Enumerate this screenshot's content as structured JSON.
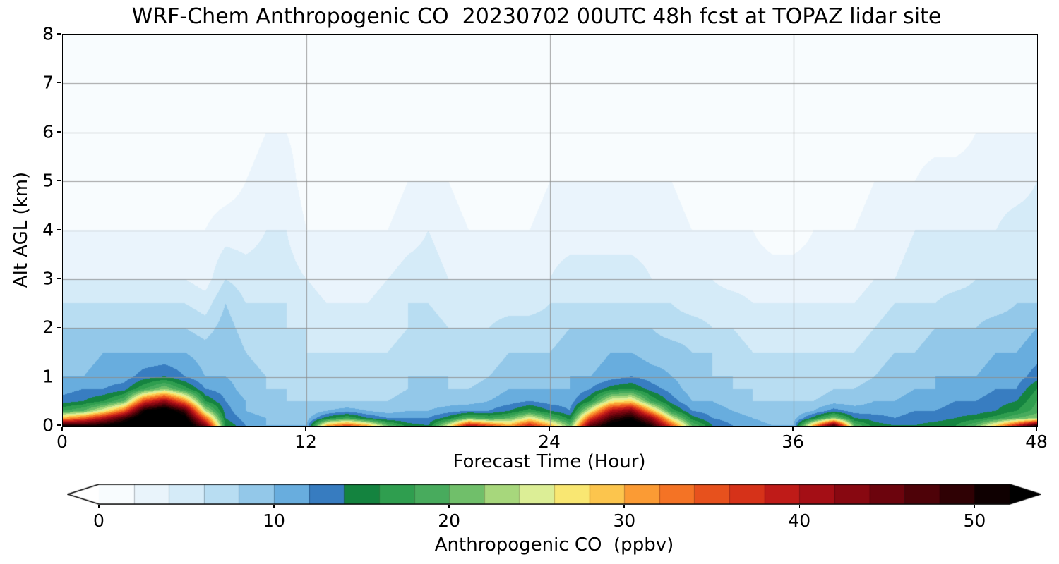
{
  "chart_data": {
    "type": "heatmap",
    "title": "WRF-Chem Anthropogenic CO  20230702 00UTC 48h fcst at TOPAZ lidar site",
    "xlabel": "Forecast Time (Hour)",
    "ylabel": "Alt AGL (km)",
    "xlim": [
      0,
      48
    ],
    "ylim": [
      0,
      8
    ],
    "xticks": [
      0,
      12,
      24,
      36,
      48
    ],
    "yticks": [
      0,
      1,
      2,
      3,
      4,
      5,
      6,
      7,
      8
    ],
    "grid": true,
    "x": [
      0,
      1,
      2,
      3,
      4,
      5,
      6,
      7,
      8,
      9,
      10,
      11,
      12,
      13,
      14,
      15,
      16,
      17,
      18,
      19,
      20,
      21,
      22,
      23,
      24,
      25,
      26,
      27,
      28,
      29,
      30,
      31,
      32,
      33,
      34,
      35,
      36,
      37,
      38,
      39,
      40,
      41,
      42,
      43,
      44,
      45,
      46,
      47,
      48
    ],
    "y_levels": [
      0,
      0.15,
      0.3,
      0.5,
      0.75,
      1.0,
      1.5,
      2.0,
      2.5,
      3.0,
      4.0,
      5.0,
      6.0,
      8.0
    ],
    "values": [
      [
        50,
        30,
        18,
        13,
        11,
        10,
        9,
        8,
        6,
        4,
        2,
        1,
        1,
        0
      ],
      [
        50,
        34,
        20,
        14,
        12,
        10,
        9,
        8,
        6,
        4,
        2,
        1,
        1,
        0
      ],
      [
        52,
        40,
        26,
        16,
        12,
        11,
        10,
        8,
        6,
        4,
        2,
        1,
        1,
        0
      ],
      [
        55,
        48,
        34,
        20,
        13,
        11,
        10,
        8,
        6,
        4,
        2,
        1,
        1,
        0
      ],
      [
        60,
        57,
        52,
        36,
        18,
        13,
        10,
        8,
        6,
        4,
        2,
        1,
        1,
        0
      ],
      [
        62,
        60,
        56,
        42,
        22,
        14,
        10,
        8,
        6,
        4,
        2,
        1,
        1,
        0
      ],
      [
        58,
        54,
        48,
        32,
        17,
        12,
        10,
        8,
        6,
        4,
        2,
        1,
        1,
        0
      ],
      [
        44,
        34,
        24,
        16,
        12,
        10,
        9,
        7,
        5,
        3,
        2,
        1,
        1,
        0
      ],
      [
        16,
        14,
        13,
        12,
        11,
        10,
        10,
        9,
        8,
        6,
        3,
        1,
        1,
        0
      ],
      [
        12,
        11,
        10,
        10,
        9,
        9,
        8,
        7,
        6,
        5,
        3,
        2,
        1,
        0
      ],
      [
        10,
        10,
        9,
        9,
        8,
        8,
        7,
        7,
        6,
        5,
        4,
        3,
        2,
        0
      ],
      [
        10,
        9,
        9,
        8,
        8,
        7,
        7,
        6,
        6,
        5,
        4,
        3,
        2,
        0
      ],
      [
        10,
        9,
        8,
        8,
        7,
        7,
        6,
        6,
        5,
        4,
        2,
        1,
        1,
        0
      ],
      [
        30,
        15,
        10,
        8,
        7,
        7,
        6,
        5,
        4,
        3,
        2,
        1,
        0,
        0
      ],
      [
        35,
        18,
        11,
        8,
        7,
        6,
        6,
        5,
        4,
        3,
        2,
        1,
        0,
        0
      ],
      [
        30,
        14,
        10,
        8,
        7,
        6,
        6,
        5,
        4,
        3,
        2,
        1,
        0,
        0
      ],
      [
        20,
        12,
        9,
        8,
        7,
        7,
        6,
        5,
        5,
        4,
        2,
        1,
        0,
        0
      ],
      [
        15,
        12,
        10,
        9,
        8,
        8,
        7,
        6,
        6,
        5,
        3,
        2,
        1,
        0
      ],
      [
        14,
        12,
        10,
        9,
        9,
        8,
        8,
        7,
        6,
        5,
        4,
        2,
        1,
        0
      ],
      [
        25,
        15,
        11,
        9,
        8,
        8,
        7,
        6,
        5,
        4,
        3,
        2,
        1,
        0
      ],
      [
        40,
        20,
        12,
        9,
        8,
        7,
        7,
        6,
        5,
        4,
        2,
        1,
        1,
        0
      ],
      [
        35,
        18,
        12,
        10,
        9,
        8,
        7,
        6,
        5,
        4,
        2,
        1,
        1,
        0
      ],
      [
        30,
        20,
        14,
        11,
        10,
        9,
        8,
        7,
        5,
        4,
        2,
        1,
        1,
        0
      ],
      [
        38,
        26,
        17,
        12,
        10,
        9,
        8,
        7,
        5,
        4,
        2,
        1,
        1,
        0
      ],
      [
        30,
        20,
        14,
        11,
        10,
        9,
        8,
        7,
        6,
        4,
        3,
        2,
        1,
        0
      ],
      [
        20,
        15,
        12,
        11,
        10,
        10,
        9,
        8,
        6,
        5,
        3,
        2,
        1,
        0
      ],
      [
        46,
        36,
        26,
        16,
        12,
        10,
        9,
        8,
        6,
        5,
        3,
        2,
        1,
        0
      ],
      [
        54,
        48,
        40,
        26,
        15,
        11,
        10,
        8,
        6,
        5,
        3,
        2,
        1,
        0
      ],
      [
        58,
        52,
        44,
        28,
        16,
        12,
        10,
        8,
        6,
        5,
        3,
        2,
        1,
        0
      ],
      [
        50,
        42,
        30,
        18,
        13,
        11,
        9,
        8,
        6,
        4,
        3,
        2,
        1,
        0
      ],
      [
        35,
        25,
        17,
        13,
        11,
        10,
        9,
        7,
        6,
        4,
        3,
        2,
        1,
        0
      ],
      [
        20,
        15,
        12,
        10,
        9,
        9,
        8,
        7,
        5,
        4,
        2,
        1,
        1,
        0
      ],
      [
        14,
        12,
        11,
        10,
        9,
        8,
        8,
        6,
        5,
        4,
        2,
        1,
        1,
        0
      ],
      [
        12,
        11,
        10,
        9,
        8,
        8,
        7,
        6,
        5,
        3,
        2,
        1,
        0,
        0
      ],
      [
        11,
        10,
        9,
        8,
        8,
        7,
        6,
        5,
        4,
        3,
        2,
        1,
        0,
        0
      ],
      [
        10,
        9,
        9,
        8,
        7,
        7,
        6,
        5,
        4,
        3,
        1,
        1,
        0,
        0
      ],
      [
        10,
        9,
        8,
        8,
        7,
        6,
        6,
        5,
        4,
        3,
        1,
        1,
        0,
        0
      ],
      [
        30,
        15,
        10,
        8,
        7,
        6,
        6,
        5,
        4,
        3,
        2,
        1,
        0,
        0
      ],
      [
        48,
        22,
        13,
        9,
        8,
        7,
        6,
        5,
        4,
        3,
        2,
        1,
        0,
        0
      ],
      [
        20,
        14,
        11,
        9,
        8,
        7,
        6,
        5,
        4,
        3,
        2,
        1,
        1,
        0
      ],
      [
        15,
        13,
        11,
        10,
        9,
        8,
        7,
        6,
        5,
        4,
        3,
        2,
        1,
        0
      ],
      [
        14,
        12,
        11,
        10,
        9,
        9,
        8,
        7,
        6,
        4,
        3,
        2,
        1,
        0
      ],
      [
        14,
        13,
        12,
        11,
        10,
        9,
        8,
        7,
        6,
        5,
        4,
        2,
        1,
        0
      ],
      [
        15,
        13,
        12,
        11,
        10,
        10,
        9,
        8,
        6,
        5,
        4,
        3,
        1,
        0
      ],
      [
        16,
        14,
        13,
        12,
        11,
        10,
        9,
        8,
        7,
        5,
        4,
        3,
        1,
        0
      ],
      [
        20,
        15,
        13,
        12,
        11,
        10,
        9,
        8,
        7,
        6,
        4,
        3,
        2,
        0
      ],
      [
        28,
        17,
        14,
        13,
        12,
        11,
        10,
        9,
        7,
        6,
        4,
        3,
        2,
        0
      ],
      [
        38,
        20,
        16,
        14,
        12,
        11,
        10,
        9,
        8,
        6,
        5,
        3,
        2,
        0
      ],
      [
        50,
        22,
        19,
        18,
        16,
        13,
        11,
        10,
        8,
        6,
        5,
        4,
        2,
        0
      ]
    ],
    "colorbar": {
      "label": "Anthropogenic CO  (ppbv)",
      "ticks": [
        0,
        10,
        20,
        30,
        40,
        50
      ],
      "vmin": 0,
      "vmax": 52,
      "level_step": 2,
      "extend": "both"
    },
    "colormap": {
      "stops": [
        [
          0,
          "#ffffff"
        ],
        [
          2,
          "#f2f9fd"
        ],
        [
          4,
          "#e1f0fa"
        ],
        [
          6,
          "#c9e6f6"
        ],
        [
          8,
          "#a8d4ee"
        ],
        [
          10,
          "#7ebce4"
        ],
        [
          12,
          "#539ed8"
        ],
        [
          13.5,
          "#2a6cb5"
        ],
        [
          14.5,
          "#0e7d3c"
        ],
        [
          17,
          "#2f9e4f"
        ],
        [
          20,
          "#55b264"
        ],
        [
          22,
          "#8ccc70"
        ],
        [
          24,
          "#c2e388"
        ],
        [
          25.5,
          "#e9f49e"
        ],
        [
          26.5,
          "#f8ef7e"
        ],
        [
          28,
          "#fcd95c"
        ],
        [
          30,
          "#fdb13f"
        ],
        [
          32,
          "#f9852a"
        ],
        [
          34,
          "#ef6220"
        ],
        [
          36,
          "#e0401a"
        ],
        [
          38,
          "#cc2418"
        ],
        [
          40,
          "#b21218"
        ],
        [
          42,
          "#960b13"
        ],
        [
          44,
          "#7a060f"
        ],
        [
          46,
          "#5e030b"
        ],
        [
          48,
          "#3f0206"
        ],
        [
          50,
          "#1f0102"
        ],
        [
          52,
          "#000000"
        ]
      ]
    },
    "grid_color": "#8c8c8c",
    "background_color": "#ffffff"
  }
}
